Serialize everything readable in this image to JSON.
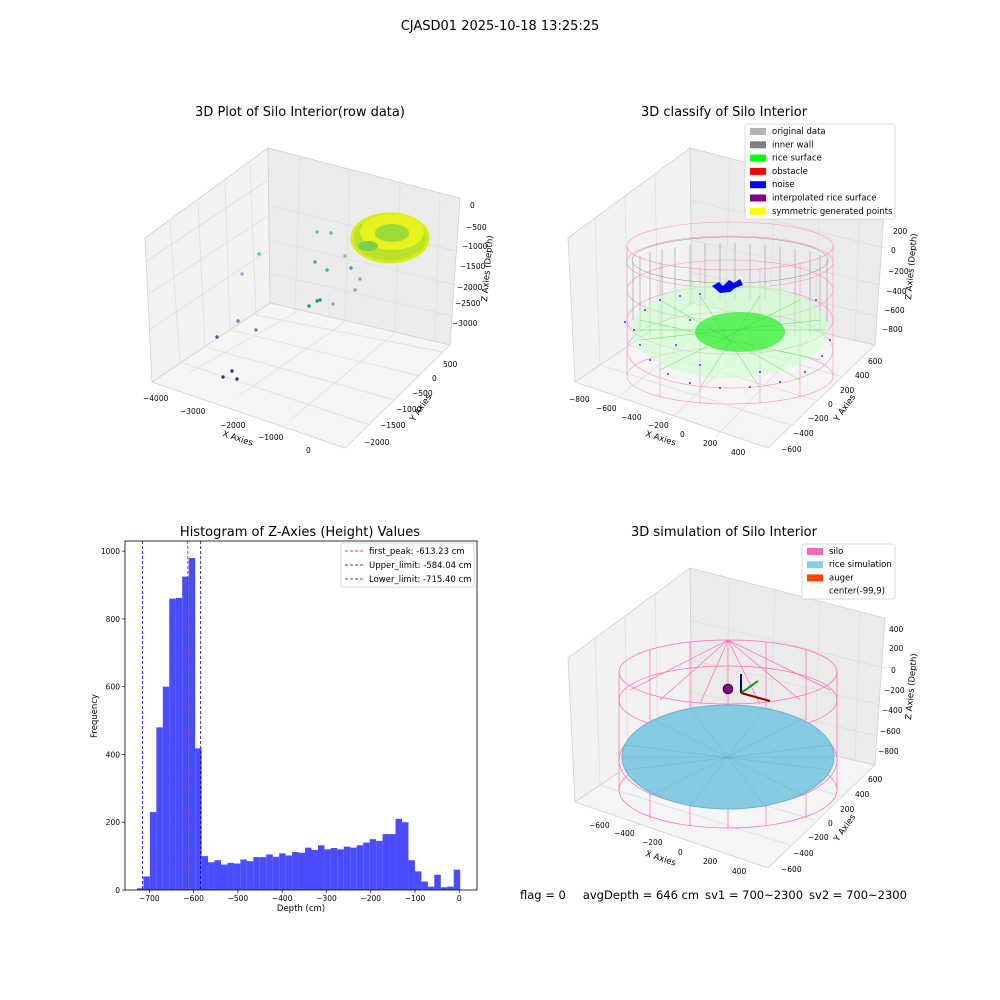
{
  "suptitle": "CJASD01 2025-10-18 13:25:25",
  "panels": {
    "raw": {
      "title": "3D Plot of Silo Interior(row data)",
      "xlabel": "X Axies",
      "ylabel": "Y Axies",
      "zlabel": "Z Axies (Depth)",
      "xticks": [
        "−4000",
        "−3000",
        "−2000",
        "−1000",
        "0"
      ],
      "yticks": [
        "500",
        "0",
        "−500",
        "−1000",
        "−1500",
        "−2000"
      ],
      "zticks": [
        "0",
        "−500",
        "−1000",
        "−1500",
        "−2000",
        "−2500",
        "−3000"
      ]
    },
    "classify": {
      "title": "3D classify of Silo Interior",
      "xlabel": "X Axies",
      "ylabel": "Y Axies",
      "zlabel": "Z Axies (Depth)",
      "xticks": [
        "−800",
        "−600",
        "−400",
        "−200",
        "0",
        "200",
        "400"
      ],
      "yticks": [
        "600",
        "400",
        "200",
        "0",
        "−200",
        "−400",
        "−600"
      ],
      "zticks": [
        "200",
        "0",
        "−200",
        "−400",
        "−600",
        "−800"
      ],
      "legend": [
        {
          "label": "original data",
          "color": "#b3b3b3"
        },
        {
          "label": "inner wall",
          "color": "#808080"
        },
        {
          "label": "rice surface",
          "color": "#00ff00"
        },
        {
          "label": "obstacle",
          "color": "#ff0000"
        },
        {
          "label": "noise",
          "color": "#0000ff"
        },
        {
          "label": "interpolated rice surface",
          "color": "#800080"
        },
        {
          "label": "symmetric generated points",
          "color": "#ffff00"
        }
      ]
    },
    "simulation": {
      "title": "3D simulation of Silo Interior",
      "xlabel": "X Axies",
      "ylabel": "Y Axies",
      "zlabel": "Z Axies (Depth)",
      "xticks": [
        "−600",
        "−400",
        "−200",
        "0",
        "200",
        "400"
      ],
      "yticks": [
        "600",
        "400",
        "200",
        "0",
        "−200",
        "−400",
        "−600"
      ],
      "zticks": [
        "400",
        "200",
        "0",
        "−200",
        "−400",
        "−600",
        "−800"
      ],
      "legend": [
        {
          "label": "silo",
          "color": "#ff69b4"
        },
        {
          "label": "rice simulation",
          "color": "#87ceeb"
        },
        {
          "label": "auger",
          "color": "#ff4500"
        },
        {
          "label": "center(-99,9)",
          "color": ""
        }
      ]
    }
  },
  "chart_data": {
    "type": "bar",
    "title": "Histogram of Z-Axies (Height) Values",
    "xlabel": "Depth (cm)",
    "ylabel": "Frequency",
    "xlim": [
      -755,
      40
    ],
    "ylim": [
      0,
      1030
    ],
    "xticks": [
      -700,
      -600,
      -500,
      -400,
      -300,
      -200,
      -100,
      0
    ],
    "yticks": [
      0,
      200,
      400,
      600,
      800,
      1000
    ],
    "bin_width": 14.6,
    "bin_starts": [
      -728,
      -713.4,
      -698.8,
      -684.2,
      -669.6,
      -655,
      -640.4,
      -625.8,
      -611.2,
      -596.6,
      -582,
      -567.4,
      -552.8,
      -538.2,
      -523.6,
      -509,
      -494.4,
      -479.8,
      -465.2,
      -450.6,
      -436,
      -421.4,
      -406.8,
      -392.2,
      -377.6,
      -363,
      -348.4,
      -333.8,
      -319.2,
      -304.6,
      -290,
      -275.4,
      -260.8,
      -246.2,
      -231.6,
      -217,
      -202.4,
      -187.8,
      -173.2,
      -158.6,
      -144,
      -129.4,
      -114.8,
      -100.2,
      -85.6,
      -71,
      -56.4,
      -41.8,
      -27.2,
      -12.6
    ],
    "values": [
      5,
      40,
      230,
      480,
      600,
      860,
      862,
      925,
      980,
      418,
      100,
      82,
      88,
      75,
      80,
      78,
      90,
      85,
      97,
      97,
      105,
      98,
      108,
      102,
      112,
      110,
      125,
      118,
      132,
      120,
      124,
      120,
      128,
      125,
      132,
      140,
      150,
      145,
      165,
      165,
      210,
      200,
      88,
      55,
      25,
      10,
      45,
      8,
      10,
      60
    ],
    "lines": [
      {
        "label": "first_peak: -613.23 cm",
        "x": -613.23,
        "color": "#ff0000"
      },
      {
        "label": "Upper_limit: -584.04 cm",
        "x": -584.04,
        "color": "#00008b"
      },
      {
        "label": "Lower_limit: -715.40 cm",
        "x": -715.4,
        "color": "#0000ff"
      }
    ],
    "bar_color": "#4b4bff",
    "grid": false,
    "legend_position": "upper-right"
  },
  "status": {
    "flag": "flag = 0",
    "avg": "avgDepth = 646 cm",
    "sv1": "sv1 = 700~2300",
    "sv2": "sv2 = 700~2300"
  }
}
